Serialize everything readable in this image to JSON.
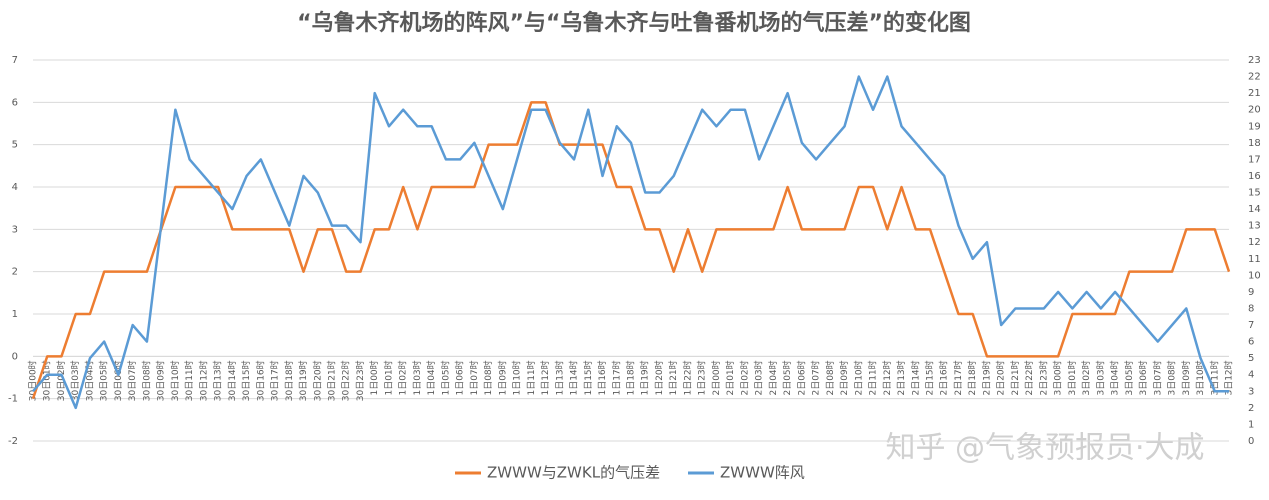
{
  "chart_data": {
    "type": "line",
    "title": "“乌鲁木齐机场的阵风”与“乌鲁木齐与吐鲁番机场的气压差”的变化图",
    "watermark": "知乎 @气象预报员·大成",
    "categories": [
      "30日00时",
      "30日01时",
      "30日02时",
      "30日03时",
      "30日04时",
      "30日05时",
      "30日06时",
      "30日07时",
      "30日08时",
      "30日09时",
      "30日10时",
      "30日11时",
      "30日12时",
      "30日13时",
      "30日14时",
      "30日15时",
      "30日16时",
      "30日17时",
      "30日18时",
      "30日19时",
      "30日20时",
      "30日21时",
      "30日22时",
      "30日23时",
      "1日00时",
      "1日01时",
      "1日02时",
      "1日03时",
      "1日04时",
      "1日05时",
      "1日06时",
      "1日07时",
      "1日08时",
      "1日09时",
      "1日10时",
      "1日11时",
      "1日12时",
      "1日13时",
      "1日14时",
      "1日15时",
      "1日16时",
      "1日17时",
      "1日18时",
      "1日19时",
      "1日20时",
      "1日21时",
      "1日22时",
      "1日23时",
      "2日00时",
      "2日01时",
      "2日02时",
      "2日03时",
      "2日04时",
      "2日05时",
      "2日06时",
      "2日07时",
      "2日08时",
      "2日09时",
      "2日10时",
      "2日11时",
      "2日12时",
      "2日13时",
      "2日14时",
      "2日15时",
      "2日16时",
      "2日17时",
      "2日18时",
      "2日19时",
      "2日20时",
      "2日21时",
      "2日22时",
      "2日23时",
      "3日00时",
      "3日01时",
      "3日02时",
      "3日03时",
      "3日04时",
      "3日05时",
      "3日06时",
      "3日07时",
      "3日08时",
      "3日09时",
      "3日10时",
      "3日11时",
      "3日12时"
    ],
    "series": [
      {
        "name": "ZWWW与ZWKL的气压差",
        "color": "#ed7d31",
        "axis": "y",
        "values": [
          -1,
          0,
          0,
          1,
          1,
          2,
          2,
          2,
          2,
          3,
          4,
          4,
          4,
          4,
          3,
          3,
          3,
          3,
          3,
          2,
          3,
          3,
          2,
          2,
          3,
          3,
          4,
          3,
          4,
          4,
          4,
          4,
          5,
          5,
          5,
          6,
          6,
          5,
          5,
          5,
          5,
          4,
          4,
          3,
          3,
          2,
          3,
          2,
          3,
          3,
          3,
          3,
          3,
          4,
          3,
          3,
          3,
          3,
          4,
          4,
          3,
          4,
          3,
          3,
          2,
          1,
          1,
          0,
          0,
          0,
          0,
          0,
          0,
          1,
          1,
          1,
          1,
          2,
          2,
          2,
          2,
          3,
          3,
          3,
          2
        ]
      },
      {
        "name": "ZWWW阵风",
        "color": "#5b9bd5",
        "axis": "y2",
        "values": [
          3,
          4,
          4,
          2,
          5,
          6,
          4,
          7,
          6,
          13,
          20,
          17,
          16,
          15,
          14,
          16,
          17,
          15,
          13,
          16,
          15,
          13,
          13,
          12,
          21,
          19,
          20,
          19,
          19,
          17,
          17,
          18,
          16,
          14,
          17,
          20,
          20,
          18,
          17,
          20,
          16,
          19,
          18,
          15,
          15,
          16,
          18,
          20,
          19,
          20,
          20,
          17,
          19,
          21,
          18,
          17,
          18,
          19,
          22,
          20,
          22,
          19,
          18,
          17,
          16,
          13,
          11,
          12,
          7,
          8,
          8,
          8,
          9,
          8,
          9,
          8,
          9,
          8,
          7,
          6,
          7,
          8,
          5,
          3,
          3
        ]
      }
    ],
    "ylim": [
      -2,
      7
    ],
    "yticks": [
      -2,
      -1,
      0,
      1,
      2,
      3,
      4,
      5,
      6,
      7
    ],
    "y2lim": [
      0,
      23
    ],
    "y2ticks": [
      0,
      1,
      2,
      3,
      4,
      5,
      6,
      7,
      8,
      9,
      10,
      11,
      12,
      13,
      14,
      15,
      16,
      17,
      18,
      19,
      20,
      21,
      22,
      23
    ],
    "grid": true,
    "legend": "bottom"
  }
}
